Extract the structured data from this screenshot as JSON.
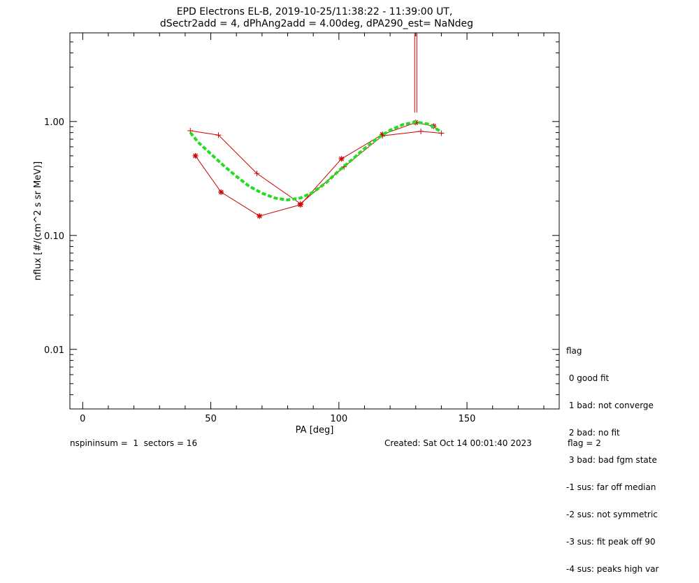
{
  "chart_data": {
    "type": "line",
    "title": "EPD Electrons EL-B, 2019-10-25/11:38:22 - 11:39:00 UT,",
    "subtitle": "dSectr2add = 4, dPhAng2add = 4.00deg, dPA290_est=    NaNdeg",
    "xlabel": "PA [deg]",
    "ylabel": "nflux [#/(cm^2 s sr MeV)]",
    "xlim": [
      -5,
      186
    ],
    "ylim": [
      0.003,
      6
    ],
    "yscale": "log",
    "x_ticks": [
      0,
      50,
      100,
      150
    ],
    "x_tick_labels": [
      "0",
      "50",
      "100",
      "150"
    ],
    "y_ticks": [
      0.01,
      0.1,
      1.0
    ],
    "y_tick_labels": [
      "0.01",
      "0.10",
      "1.00"
    ],
    "series": [
      {
        "marker": "plus",
        "color": "#cc0000",
        "points": [
          [
            42,
            0.83
          ],
          [
            53,
            0.76
          ],
          [
            68,
            0.35
          ],
          [
            85,
            0.19
          ],
          [
            102,
            0.4
          ],
          [
            117,
            0.75
          ],
          [
            132,
            0.82
          ],
          [
            140,
            0.79
          ]
        ]
      },
      {
        "marker": "asterisk",
        "color": "#cc0000",
        "points": [
          [
            44,
            0.5
          ],
          [
            54,
            0.24
          ],
          [
            69,
            0.148
          ],
          [
            85,
            0.186
          ],
          [
            101,
            0.47
          ],
          [
            117,
            0.77
          ],
          [
            130,
            0.98
          ],
          [
            137,
            0.91
          ]
        ]
      },
      {
        "style": "dashed-fit",
        "color": "#22dd22",
        "points": [
          [
            42,
            0.8
          ],
          [
            45,
            0.66
          ],
          [
            50,
            0.52
          ],
          [
            55,
            0.41
          ],
          [
            60,
            0.33
          ],
          [
            65,
            0.27
          ],
          [
            70,
            0.235
          ],
          [
            75,
            0.213
          ],
          [
            80,
            0.205
          ],
          [
            85,
            0.213
          ],
          [
            90,
            0.24
          ],
          [
            95,
            0.29
          ],
          [
            100,
            0.37
          ],
          [
            105,
            0.46
          ],
          [
            110,
            0.58
          ],
          [
            115,
            0.71
          ],
          [
            120,
            0.84
          ],
          [
            125,
            0.94
          ],
          [
            130,
            0.99
          ],
          [
            135,
            0.95
          ],
          [
            140,
            0.81
          ]
        ]
      },
      {
        "style": "vertical-marker",
        "color": "#cc0000",
        "x": 130,
        "y_range": [
          1.2,
          6
        ]
      }
    ]
  },
  "flags": {
    "title": "flag",
    "items": [
      " 0 good fit",
      " 1 bad: not converge",
      " 2 bad: no fit",
      " 3 bad: bad fgm state",
      "-1 sus: far off median",
      "-2 sus: not symmetric",
      "-3 sus: fit peak off 90",
      "-4 sus: peaks high var"
    ]
  },
  "footer": {
    "left": "nspininsum =  1  sectors = 16",
    "created": "Created: Sat Oct 14 00:01:40 2023",
    "flag": "flag = 2"
  }
}
